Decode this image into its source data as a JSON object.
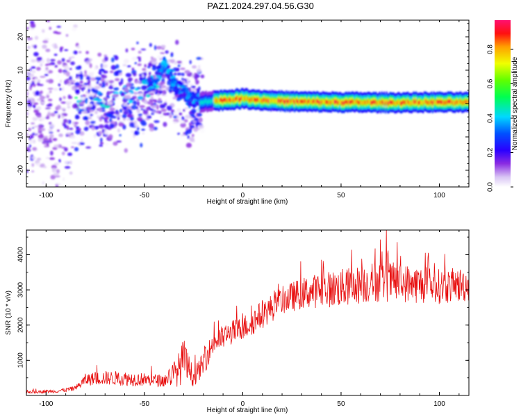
{
  "figure": {
    "title": "PAZ1.2024.297.04.56.G30"
  },
  "chart_data": [
    {
      "type": "heatmap",
      "xlabel": "Height of straight line (km)",
      "ylabel": "Frequency (Hz)",
      "xlim": [
        -110,
        115
      ],
      "ylim": [
        -25,
        25
      ],
      "x_ticks": [
        -100,
        -50,
        0,
        50,
        100
      ],
      "y_ticks": [
        -20,
        -10,
        0,
        10,
        20
      ],
      "colorbar": {
        "label": "Normalized spectral amplitude",
        "range": [
          0.0,
          0.97
        ],
        "ticks": [
          0.0,
          0.2,
          0.4,
          0.6,
          0.8
        ],
        "colormap": "rainbow (white-violet-blue-cyan-green-yellow-red-magenta)"
      },
      "ridge": {
        "description": "strong narrow ridge near 0 Hz for heights above about -22 km; scattered weak energy below",
        "points": [
          {
            "x": -110,
            "f": 0.0
          },
          {
            "x": -80,
            "f": 0.5
          },
          {
            "x": -60,
            "f": 2.0
          },
          {
            "x": -45,
            "f": 6.0
          },
          {
            "x": -40,
            "f": 12.0
          },
          {
            "x": -35,
            "f": 6.0
          },
          {
            "x": -28,
            "f": 2.0
          },
          {
            "x": -22,
            "f": 0.5
          },
          {
            "x": -15,
            "f": 0.8
          },
          {
            "x": 0,
            "f": 1.5
          },
          {
            "x": 10,
            "f": 1.0
          },
          {
            "x": 25,
            "f": 0.6
          },
          {
            "x": 50,
            "f": 0.4
          },
          {
            "x": 75,
            "f": 0.3
          },
          {
            "x": 100,
            "f": 0.4
          },
          {
            "x": 115,
            "f": 0.3
          }
        ]
      }
    },
    {
      "type": "line",
      "xlabel": "Height of straight line (km)",
      "ylabel": "SNR (10 * v/v)",
      "xlim": [
        -110,
        115
      ],
      "ylim": [
        0,
        4700
      ],
      "x_ticks": [
        -100,
        -50,
        0,
        50,
        100
      ],
      "y_ticks": [
        1000,
        2000,
        3000,
        4000
      ],
      "line_color": "#e81010",
      "series": [
        {
          "values_envelope": [
            {
              "x": -110,
              "mean": 100,
              "spread": 100
            },
            {
              "x": -95,
              "mean": 120,
              "spread": 90
            },
            {
              "x": -85,
              "mean": 200,
              "spread": 150
            },
            {
              "x": -80,
              "mean": 450,
              "spread": 350
            },
            {
              "x": -70,
              "mean": 500,
              "spread": 400
            },
            {
              "x": -60,
              "mean": 480,
              "spread": 420
            },
            {
              "x": -50,
              "mean": 450,
              "spread": 380
            },
            {
              "x": -40,
              "mean": 420,
              "spread": 350
            },
            {
              "x": -33,
              "mean": 700,
              "spread": 900
            },
            {
              "x": -30,
              "mean": 1000,
              "spread": 1300
            },
            {
              "x": -25,
              "mean": 500,
              "spread": 500
            },
            {
              "x": -20,
              "mean": 900,
              "spread": 700
            },
            {
              "x": -15,
              "mean": 1500,
              "spread": 700
            },
            {
              "x": -5,
              "mean": 1800,
              "spread": 700
            },
            {
              "x": 0,
              "mean": 1900,
              "spread": 700
            },
            {
              "x": 5,
              "mean": 2100,
              "spread": 800
            },
            {
              "x": 10,
              "mean": 2300,
              "spread": 800
            },
            {
              "x": 20,
              "mean": 2700,
              "spread": 800
            },
            {
              "x": 30,
              "mean": 2900,
              "spread": 900
            },
            {
              "x": 40,
              "mean": 3000,
              "spread": 1000
            },
            {
              "x": 50,
              "mean": 3050,
              "spread": 1100
            },
            {
              "x": 60,
              "mean": 3150,
              "spread": 1100
            },
            {
              "x": 70,
              "mean": 3250,
              "spread": 1200
            },
            {
              "x": 80,
              "mean": 3200,
              "spread": 1100
            },
            {
              "x": 90,
              "mean": 3150,
              "spread": 1100
            },
            {
              "x": 100,
              "mean": 3100,
              "spread": 1000
            },
            {
              "x": 115,
              "mean": 3150,
              "spread": 1000
            }
          ],
          "peak": {
            "x": 73,
            "y": 4700
          }
        }
      ]
    }
  ]
}
